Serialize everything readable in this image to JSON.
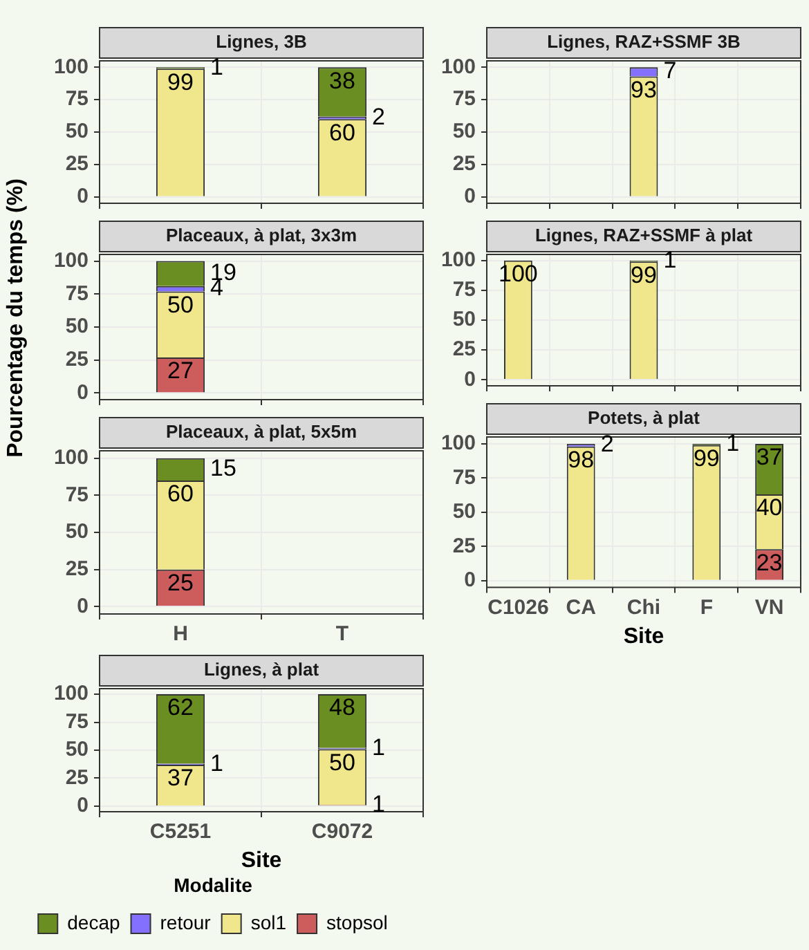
{
  "chart_data": [
    {
      "type": "bar",
      "title": "Lignes, 3B",
      "categories": [
        null,
        null
      ],
      "stacked": true,
      "data_labels": true,
      "grid": true,
      "ylim": [
        -5,
        105
      ],
      "yticks": [
        0,
        25,
        50,
        75,
        100
      ],
      "tick_labels": "y",
      "series": [
        {
          "color": "#f0e68c",
          "values": [
            99,
            60
          ]
        },
        {
          "color": "#8470ff",
          "values": [
            null,
            2
          ]
        },
        {
          "color": "#6b8e23",
          "values": [
            1,
            38
          ]
        }
      ]
    },
    {
      "type": "bar",
      "title": "Placeaux, à plat, 3x3m",
      "ylabel": "Pourcentage du temps (%)",
      "categories": [
        null,
        null
      ],
      "stacked": true,
      "data_labels": true,
      "grid": true,
      "ylim": [
        -5,
        105
      ],
      "yticks": [
        0,
        25,
        50,
        75,
        100
      ],
      "tick_labels": "y",
      "series": [
        {
          "color": "#cd5c5c",
          "values": [
            27,
            null
          ]
        },
        {
          "color": "#f0e68c",
          "values": [
            50,
            null
          ]
        },
        {
          "color": "#8470ff",
          "values": [
            4,
            null
          ]
        },
        {
          "color": "#6b8e23",
          "values": [
            19,
            null
          ]
        }
      ]
    },
    {
      "type": "bar",
      "title": "Placeaux, à plat, 5x5m",
      "categories": [
        "H",
        "T"
      ],
      "stacked": true,
      "data_labels": true,
      "grid": true,
      "ylim": [
        -5,
        105
      ],
      "yticks": [
        0,
        25,
        50,
        75,
        100
      ],
      "series": [
        {
          "color": "#cd5c5c",
          "values": [
            25,
            null
          ]
        },
        {
          "color": "#f0e68c",
          "values": [
            60,
            null
          ]
        },
        {
          "color": "#6b8e23",
          "values": [
            15,
            null
          ]
        }
      ]
    },
    {
      "type": "bar",
      "title": "Lignes, à plat",
      "xlabel": "Site",
      "categories": [
        "C5251",
        "C9072"
      ],
      "stacked": true,
      "data_labels": true,
      "grid": true,
      "ylim": [
        -5,
        105
      ],
      "yticks": [
        0,
        25,
        50,
        75,
        100
      ],
      "legend": "bottom",
      "legend_title": "Modalite",
      "series": [
        {
          "name": "stopsol",
          "color": "#cd5c5c",
          "values": [
            null,
            1
          ]
        },
        {
          "name": "sol1",
          "color": "#f0e68c",
          "values": [
            37,
            50
          ]
        },
        {
          "name": "retour",
          "color": "#8470ff",
          "values": [
            1,
            1
          ]
        },
        {
          "name": "decap",
          "color": "#6b8e23",
          "values": [
            62,
            48
          ]
        }
      ]
    },
    {
      "type": "bar",
      "title": "Lignes, RAZ+SSMF 3B",
      "categories": [
        null,
        null,
        null,
        null,
        null
      ],
      "stacked": true,
      "data_labels": true,
      "grid": true,
      "ylim": [
        -5,
        105
      ],
      "yticks": [
        0,
        25,
        50,
        75,
        100
      ],
      "tick_labels": "y",
      "series": [
        {
          "color": "#f0e68c",
          "values": [
            null,
            null,
            93,
            null,
            null
          ]
        },
        {
          "color": "#8470ff",
          "values": [
            null,
            null,
            7,
            null,
            null
          ]
        }
      ]
    },
    {
      "type": "bar",
      "title": "Lignes, RAZ+SSMF à plat",
      "categories": [
        null,
        null,
        null,
        null,
        null
      ],
      "stacked": true,
      "data_labels": true,
      "grid": true,
      "ylim": [
        -5,
        105
      ],
      "yticks": [
        0,
        25,
        50,
        75,
        100
      ],
      "tick_labels": "y",
      "series": [
        {
          "color": "#f0e68c",
          "values": [
            100,
            null,
            99,
            null,
            null
          ]
        },
        {
          "color": "#6b8e23",
          "values": [
            null,
            null,
            1,
            null,
            null
          ]
        }
      ]
    },
    {
      "type": "bar",
      "title": "Potets, à plat",
      "xlabel": "Site",
      "categories": [
        "C1026",
        "CA",
        "Chi",
        "F",
        "VN"
      ],
      "stacked": true,
      "data_labels": true,
      "grid": true,
      "ylim": [
        -5,
        105
      ],
      "yticks": [
        0,
        25,
        50,
        75,
        100
      ],
      "series": [
        {
          "color": "#cd5c5c",
          "values": [
            null,
            null,
            null,
            null,
            23
          ]
        },
        {
          "color": "#f0e68c",
          "values": [
            null,
            98,
            null,
            99,
            40
          ]
        },
        {
          "color": "#8470ff",
          "values": [
            null,
            2,
            null,
            null,
            null
          ]
        },
        {
          "color": "#6b8e23",
          "values": [
            null,
            null,
            null,
            1,
            37
          ]
        }
      ]
    }
  ]
}
